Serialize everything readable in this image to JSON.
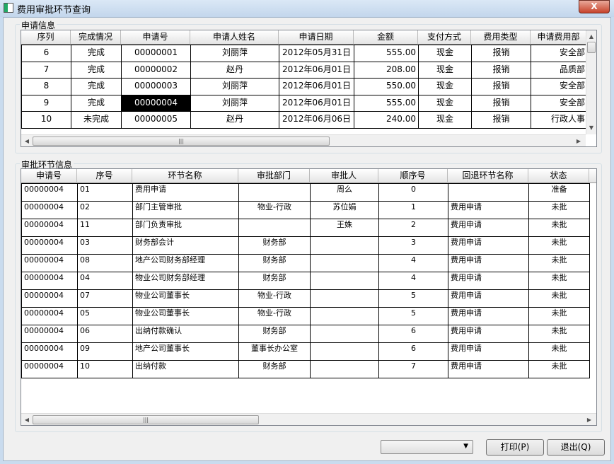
{
  "window": {
    "title": "费用审批环节查询",
    "close_label": "X"
  },
  "apply": {
    "group_label": "申请信息",
    "columns": [
      "序列",
      "完成情况",
      "申请号",
      "申请人姓名",
      "申请日期",
      "金额",
      "支付方式",
      "费用类型",
      "申请费用部"
    ],
    "rows": [
      [
        "6",
        "完成",
        "00000001",
        "刘丽萍",
        "2012年05月31日",
        "555.00",
        "现金",
        "报销",
        "安全部"
      ],
      [
        "7",
        "完成",
        "00000002",
        "赵丹",
        "2012年06月01日",
        "208.00",
        "现金",
        "报销",
        "品质部"
      ],
      [
        "8",
        "完成",
        "00000003",
        "刘丽萍",
        "2012年06月01日",
        "550.00",
        "现金",
        "报销",
        "安全部"
      ],
      [
        "9",
        "完成",
        "00000004",
        "刘丽萍",
        "2012年06月01日",
        "555.00",
        "现金",
        "报销",
        "安全部"
      ],
      [
        "10",
        "未完成",
        "00000005",
        "赵丹",
        "2012年06月06日",
        "240.00",
        "现金",
        "报销",
        "行政人事"
      ]
    ],
    "selected_row": 3
  },
  "approval": {
    "group_label": "审批环节信息",
    "columns": [
      "申请号",
      "序号",
      "环节名称",
      "审批部门",
      "审批人",
      "顺序号",
      "回退环节名称",
      "状态"
    ],
    "rows": [
      [
        "00000004",
        "01",
        "费用申请",
        "",
        "周么",
        "0",
        "",
        "准备"
      ],
      [
        "00000004",
        "02",
        "部门主管审批",
        "物业-行政",
        "苏位娟",
        "1",
        "费用申请",
        "未批"
      ],
      [
        "00000004",
        "11",
        "部门负责审批",
        "",
        "王姝",
        "2",
        "费用申请",
        "未批"
      ],
      [
        "00000004",
        "03",
        "财务部会计",
        "财务部",
        "",
        "3",
        "费用申请",
        "未批"
      ],
      [
        "00000004",
        "08",
        "地产公司财务部经理",
        "财务部",
        "",
        "4",
        "费用申请",
        "未批"
      ],
      [
        "00000004",
        "04",
        "物业公司财务部经理",
        "财务部",
        "",
        "4",
        "费用申请",
        "未批"
      ],
      [
        "00000004",
        "07",
        "物业公司董事长",
        "物业-行政",
        "",
        "5",
        "费用申请",
        "未批"
      ],
      [
        "00000004",
        "05",
        "物业公司董事长",
        "物业-行政",
        "",
        "5",
        "费用申请",
        "未批"
      ],
      [
        "00000004",
        "06",
        "出纳付款确认",
        "财务部",
        "",
        "6",
        "费用申请",
        "未批"
      ],
      [
        "00000004",
        "09",
        "地产公司董事长",
        "董事长办公室",
        "",
        "6",
        "费用申请",
        "未批"
      ],
      [
        "00000004",
        "10",
        "出纳付款",
        "财务部",
        "",
        "7",
        "费用申请",
        "未批"
      ]
    ]
  },
  "footer": {
    "combo_value": "",
    "print_label": "打印(P)",
    "exit_label": "退出(Q)"
  }
}
